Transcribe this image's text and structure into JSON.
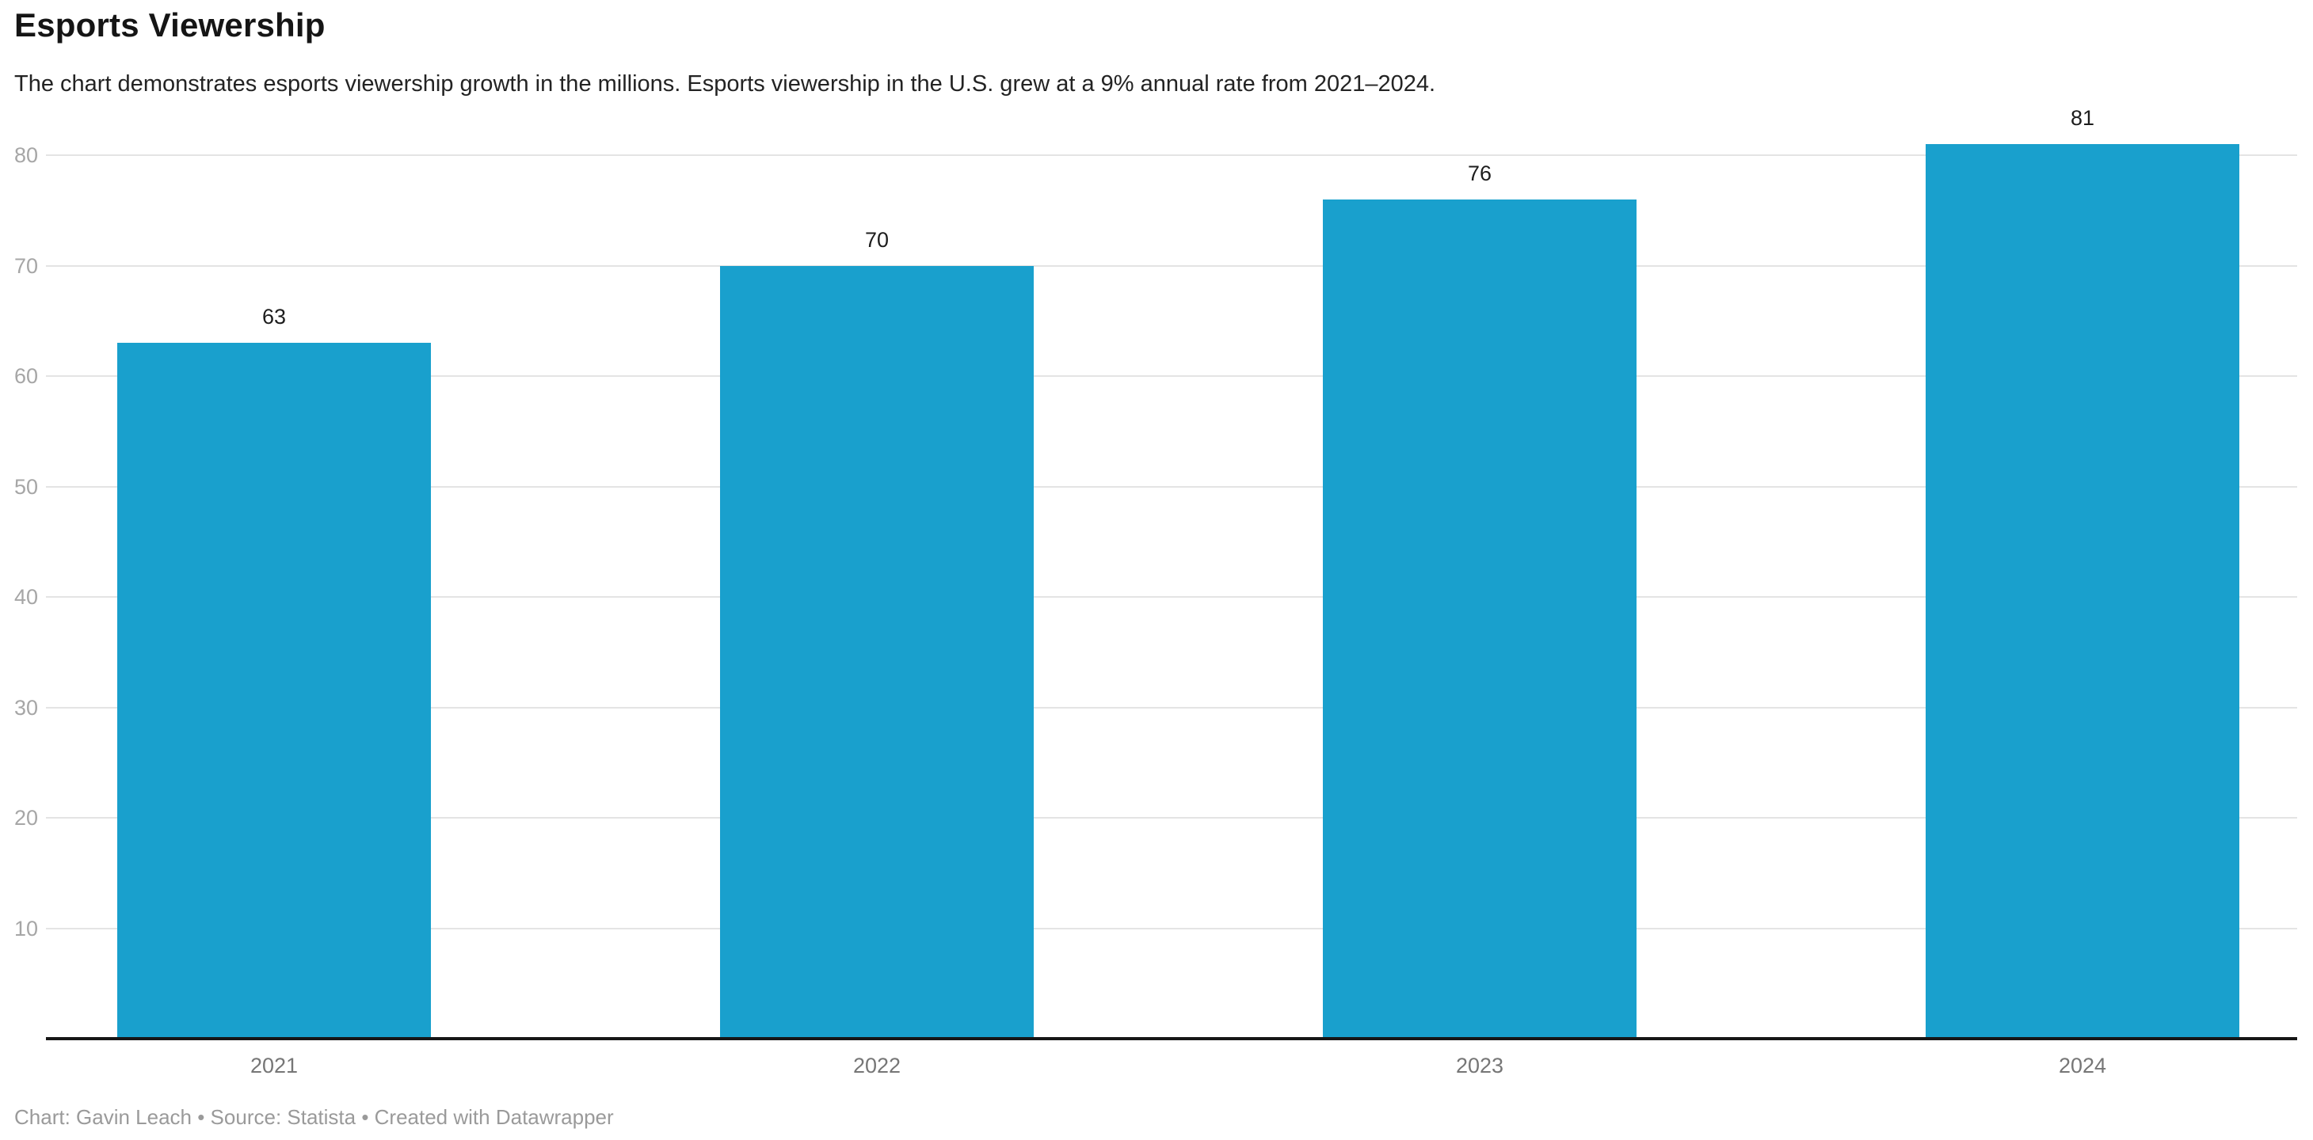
{
  "header": {
    "title": "Esports Viewership",
    "subtitle": "The chart demonstrates esports viewership growth in the millions. Esports viewership in the U.S. grew at a 9% annual rate from 2021–2024."
  },
  "chart_data": {
    "type": "bar",
    "title": "Esports Viewership",
    "subtitle": "The chart demonstrates esports viewership growth in the millions. Esports viewership in the U.S. grew at a 9% annual rate from 2021–2024.",
    "categories": [
      "2021",
      "2022",
      "2023",
      "2024"
    ],
    "values": [
      63,
      70,
      76,
      81
    ],
    "value_labels": [
      "63",
      "70",
      "76",
      "81"
    ],
    "xlabel": "",
    "ylabel": "",
    "ylim": [
      0,
      85
    ],
    "yticks": [
      10,
      20,
      30,
      40,
      50,
      60,
      70,
      80
    ],
    "grid": "horizontal-only",
    "legend": "none",
    "orientation": "vertical"
  },
  "colors": {
    "bar": "#19a0cd",
    "gridline": "#e4e4e4",
    "axis_line": "#161616",
    "y_tick_text": "#a6a6a6",
    "x_tick_text": "#767676",
    "value_label_text": "#1d1d1d",
    "footer_text": "#9a9a9a"
  },
  "footer": {
    "text": "Chart: Gavin Leach • Source: Statista • Created with Datawrapper"
  }
}
